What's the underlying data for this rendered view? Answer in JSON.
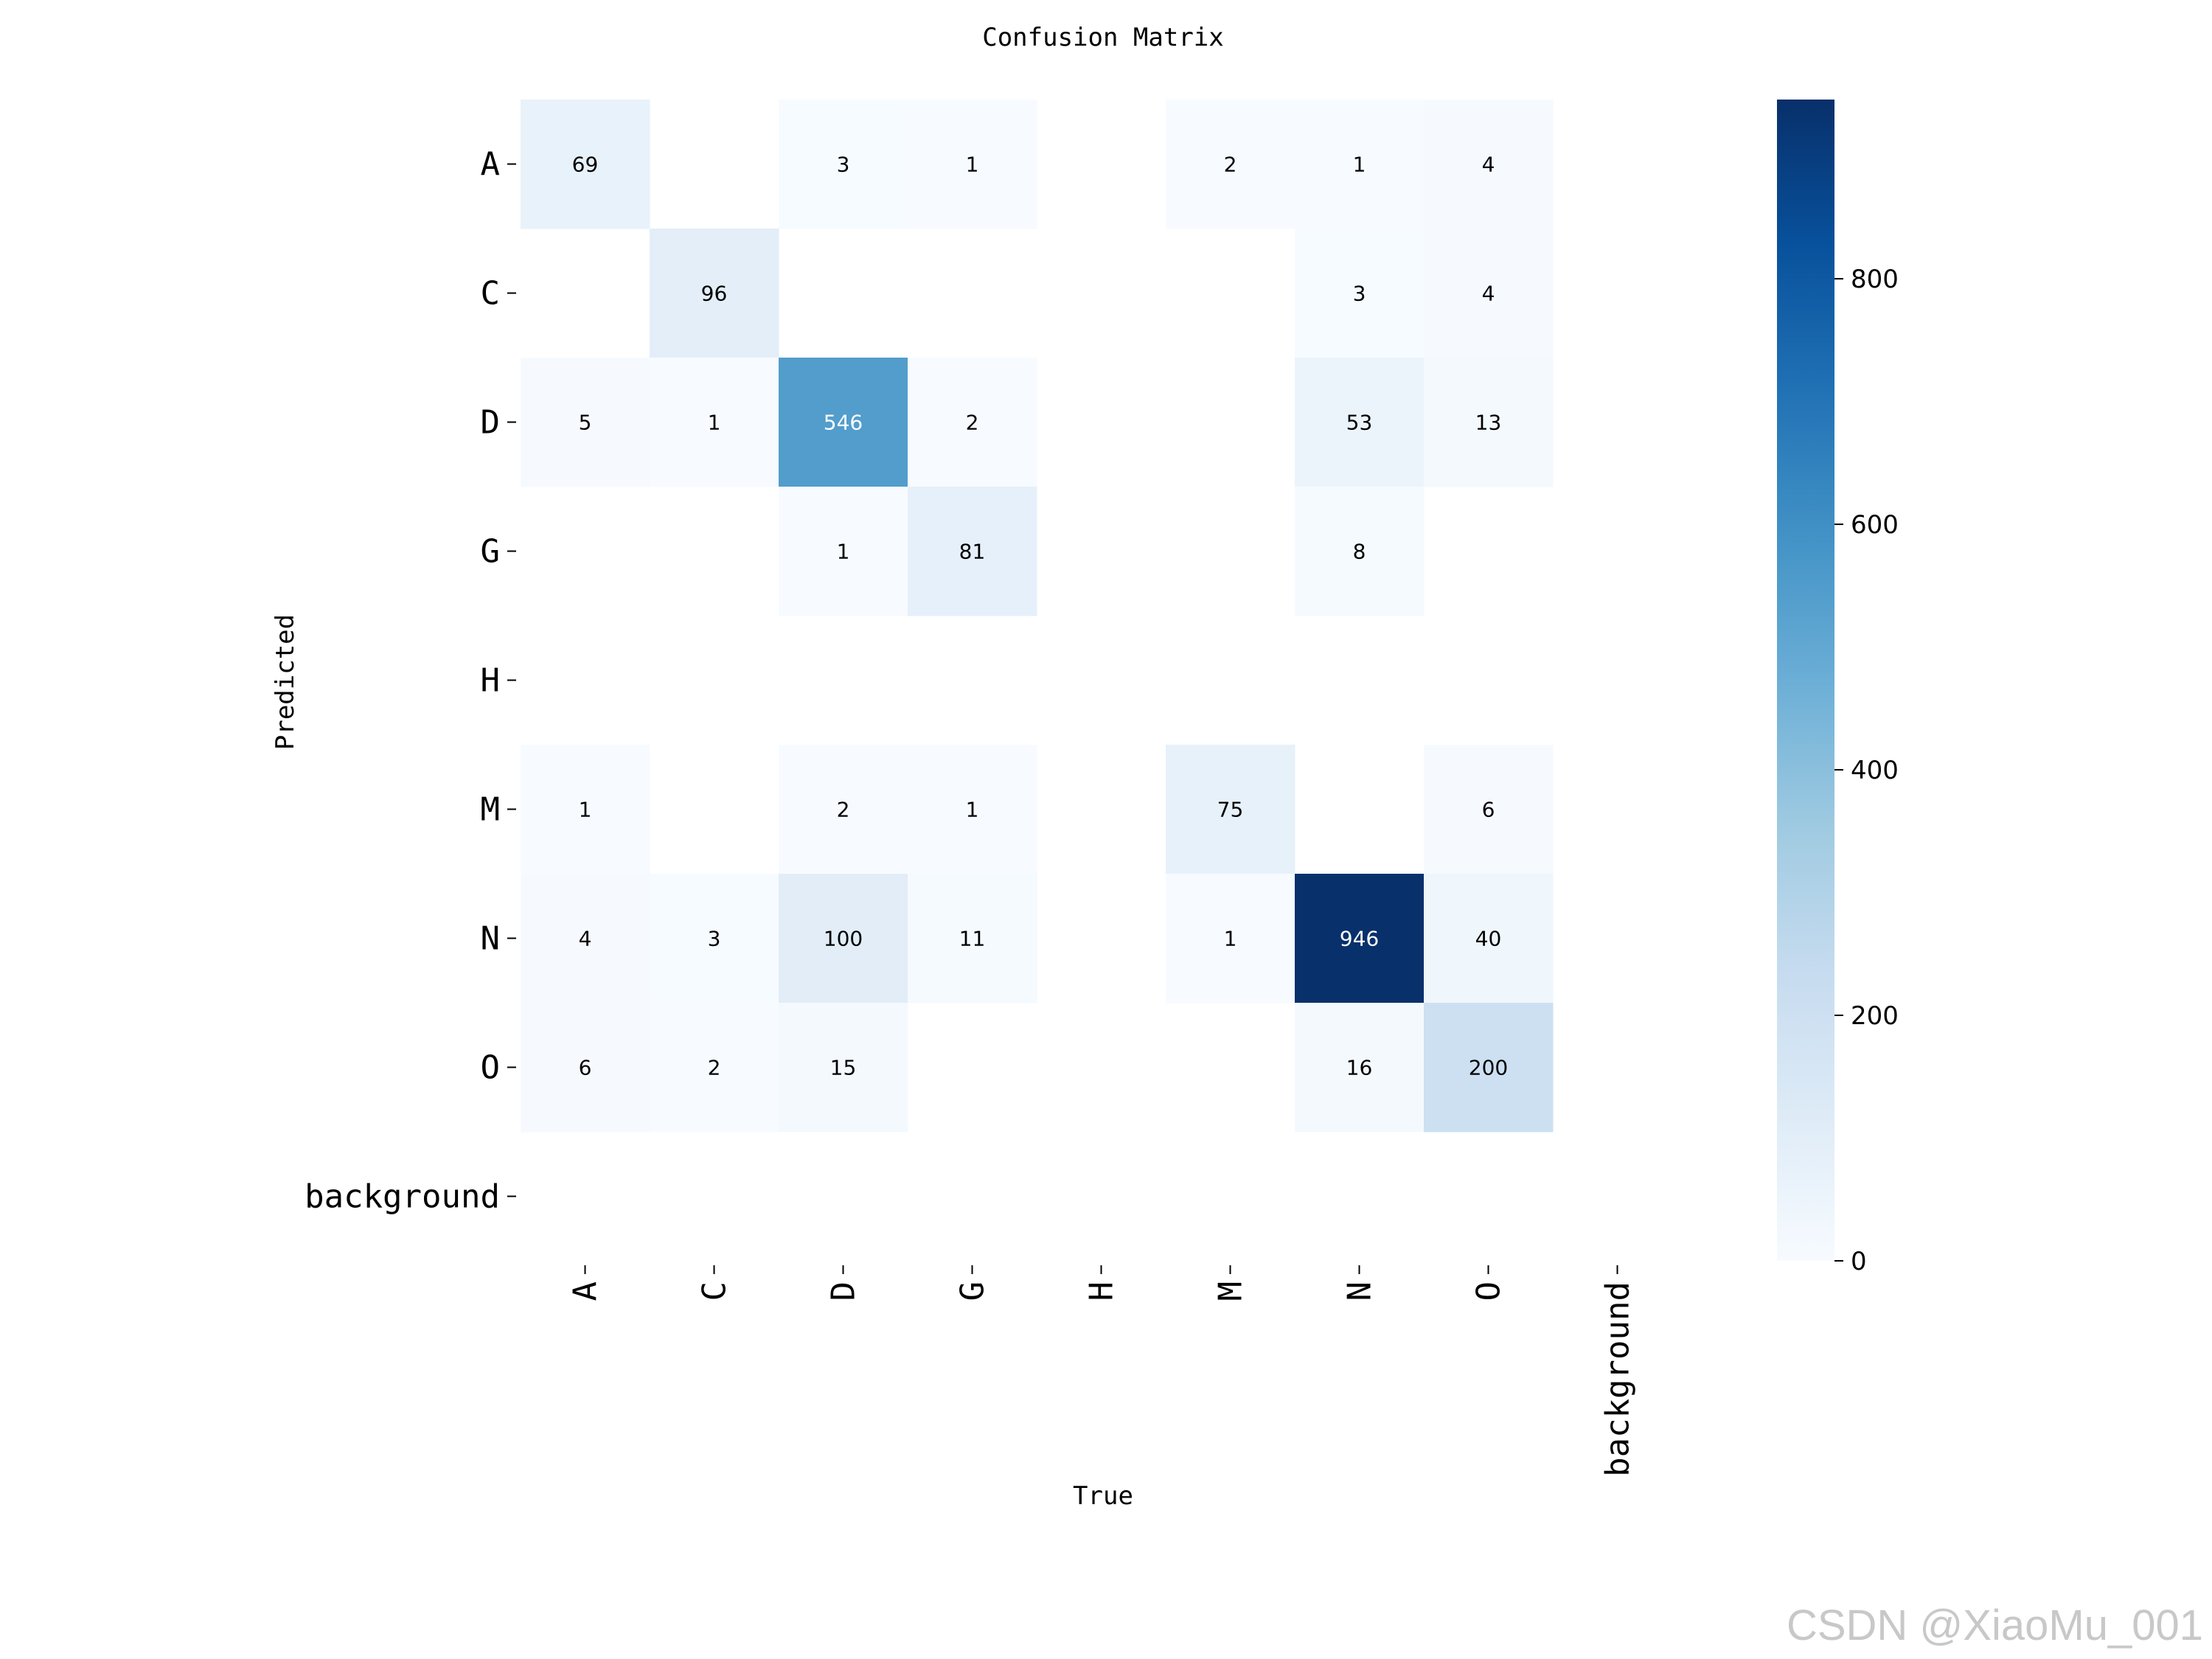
{
  "chart_data": {
    "type": "heatmap",
    "title": "Confusion Matrix",
    "xlabel": "True",
    "ylabel": "Predicted",
    "x_categories": [
      "A",
      "C",
      "D",
      "G",
      "H",
      "M",
      "N",
      "O",
      "background"
    ],
    "y_categories": [
      "A",
      "C",
      "D",
      "G",
      "H",
      "M",
      "N",
      "O",
      "background"
    ],
    "values": [
      [
        69,
        null,
        3,
        1,
        null,
        2,
        1,
        4,
        null
      ],
      [
        null,
        96,
        null,
        null,
        null,
        null,
        3,
        4,
        null
      ],
      [
        5,
        1,
        546,
        2,
        null,
        null,
        53,
        13,
        null
      ],
      [
        null,
        null,
        1,
        81,
        null,
        null,
        8,
        null,
        null
      ],
      [
        null,
        null,
        null,
        null,
        null,
        null,
        null,
        null,
        null
      ],
      [
        1,
        null,
        2,
        1,
        null,
        75,
        null,
        6,
        null
      ],
      [
        4,
        3,
        100,
        11,
        null,
        1,
        946,
        40,
        null
      ],
      [
        6,
        2,
        15,
        null,
        null,
        null,
        16,
        200,
        null
      ],
      [
        null,
        null,
        null,
        null,
        null,
        null,
        null,
        null,
        null
      ]
    ],
    "colorbar": {
      "colormap": "Blues",
      "min": 0,
      "max": 946,
      "ticks": [
        0,
        200,
        400,
        600,
        800
      ]
    },
    "text_color_dark": "#000000",
    "text_color_light": "#ffffff"
  },
  "watermark": "CSDN @XiaoMu_001"
}
